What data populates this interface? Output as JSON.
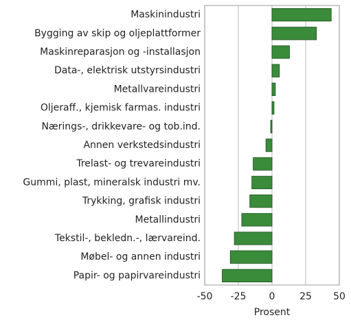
{
  "chart_data": {
    "type": "barh",
    "categories": [
      "Maskinindustri",
      "Bygging av skip og oljeplattformer",
      "Maskinreparasjon og -installasjon",
      "Data-, elektrisk utstyrsindustri",
      "Metallvareindustri",
      "Oljeraff., kjemisk farmas. industri",
      "Nærings-, drikkevare- og tob.ind.",
      "Annen verkstedsindustri",
      "Trelast- og trevareindustri",
      "Gummi, plast, mineralsk industri mv.",
      "Trykking, grafisk industri",
      "Metallindustri",
      "Tekstil-, bekledn.-, lærvareind.",
      "Møbel- og annen industri",
      "Papir- og papirvareindustri"
    ],
    "values": [
      44,
      33,
      13,
      5.5,
      2.5,
      1.5,
      -1,
      -4.5,
      -14,
      -15,
      -16.5,
      -22.5,
      -28,
      -31,
      -37
    ],
    "color": "#3a8b3a",
    "xlabel": "Prosent",
    "xlim": [
      -50,
      50
    ],
    "xticks": [
      -50,
      -25,
      0,
      25,
      50
    ],
    "grid": true
  }
}
